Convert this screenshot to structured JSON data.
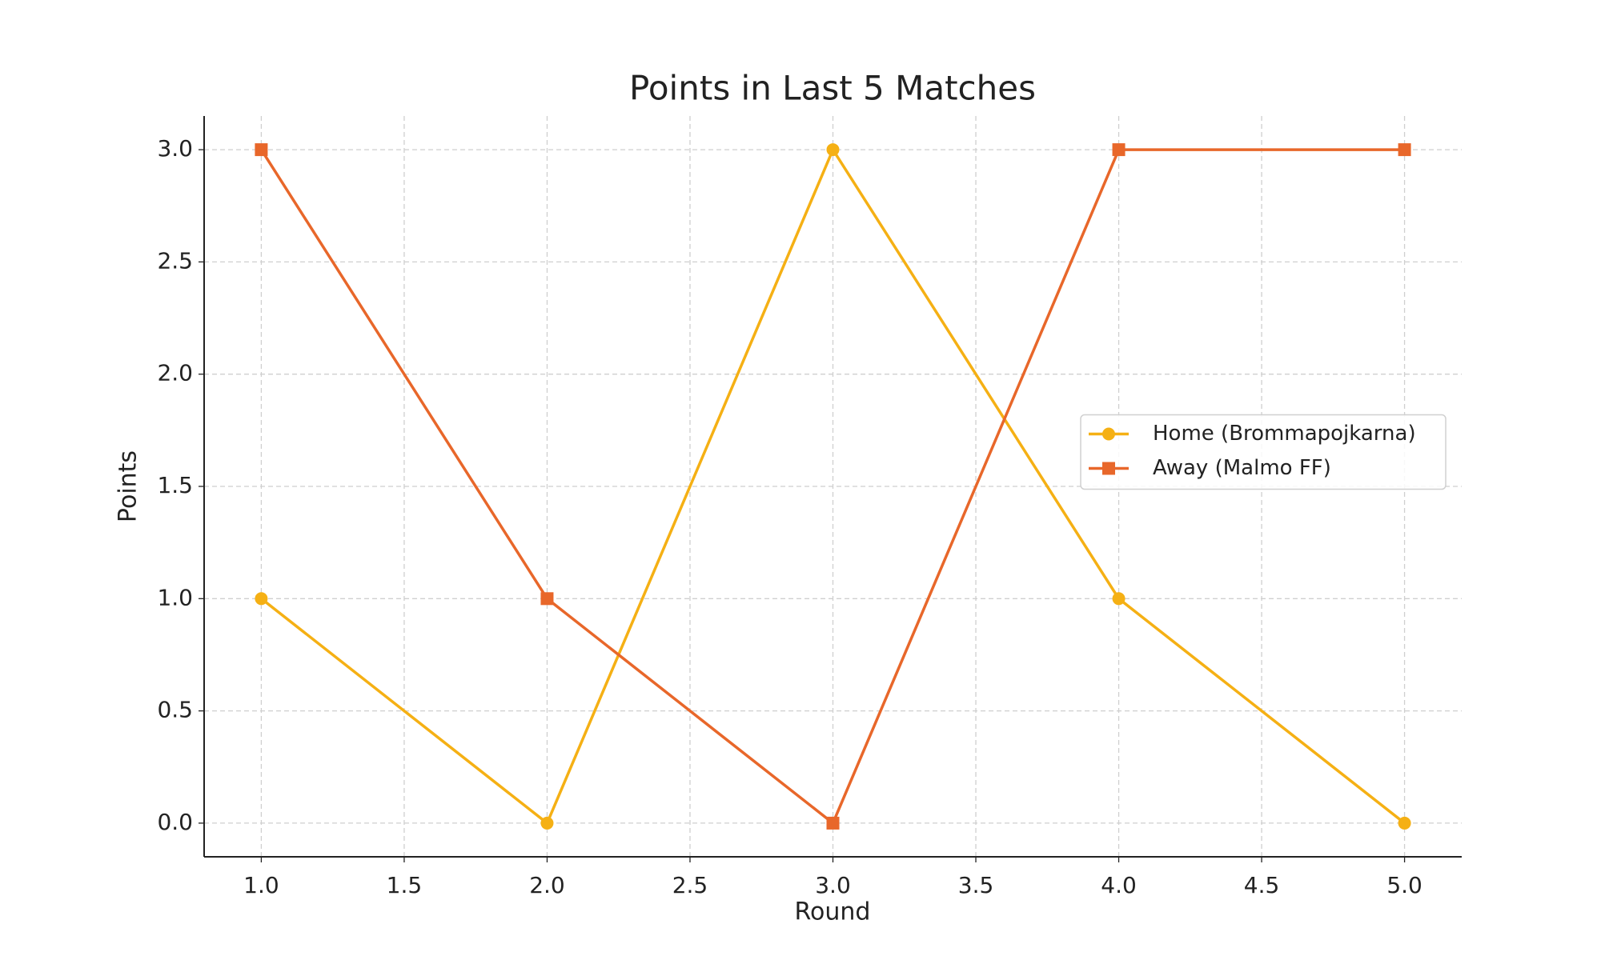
{
  "chart_data": {
    "type": "line",
    "title": "Points in Last 5 Matches",
    "x_label": "Round",
    "y_label": "Points",
    "x": [
      1,
      2,
      3,
      4,
      5
    ],
    "series": [
      {
        "name": "Home (Brommapojkarna)",
        "color": "#f5b014",
        "marker": "circle",
        "values": [
          1,
          0,
          3,
          1,
          0
        ]
      },
      {
        "name": "Away (Malmo FF)",
        "color": "#e8672a",
        "marker": "square",
        "values": [
          3,
          1,
          0,
          3,
          3
        ]
      }
    ],
    "xlim": [
      0.8,
      5.2
    ],
    "xticks": [
      {
        "value": 1,
        "label": "1.0"
      },
      {
        "value": 1.5,
        "label": "1.5"
      },
      {
        "value": 2,
        "label": "2.0"
      },
      {
        "value": 2.5,
        "label": "2.5"
      },
      {
        "value": 3,
        "label": "3.0"
      },
      {
        "value": 3.5,
        "label": "3.5"
      },
      {
        "value": 4,
        "label": "4.0"
      },
      {
        "value": 4.5,
        "label": "4.5"
      },
      {
        "value": 5,
        "label": "5.0"
      }
    ],
    "ylim": [
      -0.15,
      3.15
    ],
    "yticks": [
      {
        "value": 0,
        "label": "0.0"
      },
      {
        "value": 0.5,
        "label": "0.5"
      },
      {
        "value": 1,
        "label": "1.0"
      },
      {
        "value": 1.5,
        "label": "1.5"
      },
      {
        "value": 2,
        "label": "2.0"
      },
      {
        "value": 2.5,
        "label": "2.5"
      },
      {
        "value": 3,
        "label": "3.0"
      }
    ],
    "grid": true,
    "legend": "center right"
  }
}
